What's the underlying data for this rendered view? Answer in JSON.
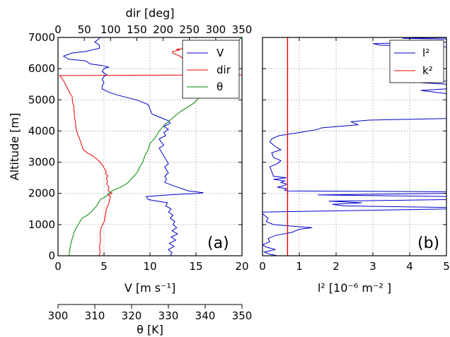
{
  "chart_data": [
    {
      "type": "line",
      "panel_label": "(a)",
      "ylabel": "Altitude [m]",
      "ylim": [
        0,
        7000
      ],
      "yticks": [
        0,
        1000,
        2000,
        3000,
        4000,
        5000,
        6000,
        7000
      ],
      "grid": true,
      "legend_position": "top-right",
      "axes": {
        "V": {
          "label": "V [m s⁻¹]",
          "lim": [
            0,
            20
          ],
          "ticks": [
            0,
            5,
            10,
            15,
            20
          ],
          "position": "bottom"
        },
        "dir": {
          "label": "dir [deg]",
          "lim": [
            0,
            350
          ],
          "ticks": [
            0,
            50,
            100,
            150,
            200,
            250,
            300,
            350
          ],
          "position": "top"
        },
        "theta": {
          "label": "θ [K]",
          "lim": [
            300,
            350
          ],
          "ticks": [
            300,
            310,
            320,
            330,
            340,
            350
          ],
          "position": "bottom-offset"
        }
      },
      "series": [
        {
          "name": "V",
          "axis": "V",
          "color": "#0000cc",
          "points": [
            [
              12.2,
              0
            ],
            [
              12.4,
              100
            ],
            [
              12.0,
              200
            ],
            [
              12.6,
              300
            ],
            [
              12.1,
              400
            ],
            [
              12.8,
              500
            ],
            [
              12.3,
              600
            ],
            [
              13.0,
              700
            ],
            [
              12.4,
              800
            ],
            [
              12.9,
              900
            ],
            [
              12.5,
              1000
            ],
            [
              12.7,
              1100
            ],
            [
              12.2,
              1200
            ],
            [
              12.5,
              1300
            ],
            [
              12.0,
              1400
            ],
            [
              12.3,
              1500
            ],
            [
              11.7,
              1600
            ],
            [
              11.9,
              1700
            ],
            [
              9.8,
              1800
            ],
            [
              9.6,
              1900
            ],
            [
              12.0,
              1950
            ],
            [
              15.2,
              2000
            ],
            [
              15.8,
              2020
            ],
            [
              14.2,
              2080
            ],
            [
              13.5,
              2150
            ],
            [
              12.5,
              2250
            ],
            [
              11.6,
              2350
            ],
            [
              11.8,
              2450
            ],
            [
              11.6,
              2550
            ],
            [
              12.0,
              2650
            ],
            [
              11.8,
              2750
            ],
            [
              11.6,
              2850
            ],
            [
              12.0,
              2950
            ],
            [
              11.8,
              3050
            ],
            [
              11.6,
              3150
            ],
            [
              11.4,
              3250
            ],
            [
              11.2,
              3350
            ],
            [
              11.0,
              3450
            ],
            [
              11.5,
              3550
            ],
            [
              11.2,
              3650
            ],
            [
              11.0,
              3750
            ],
            [
              11.7,
              3850
            ],
            [
              11.5,
              3950
            ],
            [
              12.0,
              4050
            ],
            [
              11.5,
              4150
            ],
            [
              12.2,
              4250
            ],
            [
              12.0,
              4330
            ],
            [
              11.0,
              4450
            ],
            [
              10.2,
              4550
            ],
            [
              10.0,
              4700
            ],
            [
              9.8,
              4850
            ],
            [
              8.5,
              5000
            ],
            [
              6.5,
              5150
            ],
            [
              5.5,
              5250
            ],
            [
              4.8,
              5350
            ],
            [
              4.8,
              5450
            ],
            [
              5.0,
              5550
            ],
            [
              4.8,
              5650
            ],
            [
              5.0,
              5750
            ],
            [
              5.3,
              5800
            ],
            [
              4.8,
              5900
            ],
            [
              5.0,
              6000
            ],
            [
              5.5,
              6050
            ],
            [
              4.8,
              6100
            ],
            [
              3.5,
              6150
            ],
            [
              3.0,
              6250
            ],
            [
              1.2,
              6300
            ],
            [
              0.6,
              6400
            ],
            [
              1.5,
              6500
            ],
            [
              3.0,
              6550
            ],
            [
              4.5,
              6650
            ],
            [
              4.5,
              6750
            ],
            [
              4.0,
              6850
            ],
            [
              4.4,
              6950
            ],
            [
              4.6,
              7000
            ]
          ]
        },
        {
          "name": "dir",
          "axis": "dir",
          "color": "#ee0000",
          "points": [
            [
              78,
              0
            ],
            [
              80,
              100
            ],
            [
              79,
              300
            ],
            [
              81,
              500
            ],
            [
              80,
              700
            ],
            [
              82,
              900
            ],
            [
              88,
              1100
            ],
            [
              90,
              1300
            ],
            [
              92,
              1500
            ],
            [
              97,
              1700
            ],
            [
              98,
              1800
            ],
            [
              100,
              1900
            ],
            [
              95,
              1950
            ],
            [
              103,
              2000
            ],
            [
              98,
              2050
            ],
            [
              95,
              2100
            ],
            [
              97,
              2200
            ],
            [
              93,
              2300
            ],
            [
              94,
              2400
            ],
            [
              92,
              2500
            ],
            [
              95,
              2550
            ],
            [
              90,
              2650
            ],
            [
              92,
              2700
            ],
            [
              88,
              2800
            ],
            [
              85,
              2900
            ],
            [
              80,
              3000
            ],
            [
              74,
              3100
            ],
            [
              66,
              3200
            ],
            [
              56,
              3300
            ],
            [
              48,
              3400
            ],
            [
              46,
              3500
            ],
            [
              42,
              3700
            ],
            [
              40,
              3800
            ],
            [
              37,
              3900
            ],
            [
              34,
              4100
            ],
            [
              33,
              4300
            ],
            [
              31,
              4500
            ],
            [
              31,
              4600
            ],
            [
              30,
              4700
            ],
            [
              30,
              4800
            ],
            [
              28,
              4900
            ],
            [
              27,
              5000
            ],
            [
              27,
              5100
            ],
            [
              23,
              5200
            ],
            [
              20,
              5300
            ],
            [
              17,
              5400
            ],
            [
              14,
              5500
            ],
            [
              11,
              5600
            ],
            [
              7,
              5700
            ],
            [
              3,
              5780
            ],
            [
              350,
              5800
            ],
            [
              262,
              5850
            ],
            [
              258,
              5900
            ],
            [
              262,
              6000
            ],
            [
              260,
              6100
            ],
            [
              250,
              6200
            ],
            [
              240,
              6300
            ],
            [
              232,
              6400
            ],
            [
              218,
              6500
            ],
            [
              218,
              6550
            ],
            [
              232,
              6600
            ],
            [
              225,
              6620
            ],
            [
              245,
              6650
            ],
            [
              246,
              6700
            ],
            [
              260,
              6750
            ],
            [
              265,
              6800
            ],
            [
              270,
              6850
            ]
          ]
        },
        {
          "name": "θ",
          "axis": "theta",
          "color": "#008800",
          "points": [
            [
              303,
              0
            ],
            [
              303.2,
              200
            ],
            [
              303.5,
              400
            ],
            [
              304,
              600
            ],
            [
              304.5,
              800
            ],
            [
              305.5,
              1000
            ],
            [
              306.5,
              1200
            ],
            [
              308,
              1300
            ],
            [
              309,
              1400
            ],
            [
              310.5,
              1600
            ],
            [
              311,
              1700
            ],
            [
              311.5,
              1800
            ],
            [
              313,
              1900
            ],
            [
              313.8,
              2000
            ],
            [
              315,
              2100
            ],
            [
              317,
              2200
            ],
            [
              318.5,
              2300
            ],
            [
              319.5,
              2400
            ],
            [
              320.2,
              2500
            ],
            [
              321,
              2600
            ],
            [
              321.7,
              2700
            ],
            [
              322,
              2800
            ],
            [
              323,
              3000
            ],
            [
              323.6,
              3200
            ],
            [
              324.5,
              3400
            ],
            [
              325,
              3600
            ],
            [
              326.5,
              3800
            ],
            [
              327.5,
              4000
            ],
            [
              329,
              4200
            ],
            [
              331,
              4400
            ],
            [
              333,
              4600
            ],
            [
              335,
              4750
            ],
            [
              337,
              4900
            ],
            [
              338.5,
              5100
            ],
            [
              339.5,
              5300
            ],
            [
              340.5,
              5500
            ],
            [
              341.5,
              5700
            ],
            [
              343,
              5900
            ],
            [
              344,
              6100
            ],
            [
              345,
              6300
            ],
            [
              346.5,
              6500
            ],
            [
              347.5,
              6700
            ],
            [
              349,
              6900
            ],
            [
              350,
              7000
            ]
          ]
        }
      ]
    },
    {
      "type": "line",
      "panel_label": "(b)",
      "xlabel": "l²  [10⁻⁶  m⁻² ]",
      "xlim": [
        0,
        5
      ],
      "xticks": [
        0,
        1,
        2,
        3,
        4,
        5
      ],
      "ylim": [
        0,
        7000
      ],
      "grid": true,
      "legend_position": "top-right",
      "series": [
        {
          "name": "l²",
          "color": "#0000cc",
          "points": [
            [
              0.4,
              0
            ],
            [
              0.2,
              50
            ],
            [
              0.05,
              120
            ],
            [
              0.35,
              200
            ],
            [
              0.1,
              280
            ],
            [
              0,
              350
            ],
            [
              0.2,
              450
            ],
            [
              0.15,
              550
            ],
            [
              0.35,
              650
            ],
            [
              0.8,
              750
            ],
            [
              1.0,
              850
            ],
            [
              1.35,
              900
            ],
            [
              0.8,
              950
            ],
            [
              0.3,
              1000
            ],
            [
              0.1,
              1100
            ],
            [
              0.15,
              1200
            ],
            [
              0.05,
              1300
            ],
            [
              0,
              1350
            ],
            [
              0,
              1400
            ],
            [
              2.5,
              1450
            ],
            [
              5,
              1500
            ],
            [
              5,
              1550
            ],
            [
              2.2,
              1600
            ],
            [
              1.9,
              1650
            ],
            [
              2.7,
              1700
            ],
            [
              1.8,
              1750
            ],
            [
              5,
              1800
            ],
            [
              5,
              1900
            ],
            [
              1.5,
              1950
            ],
            [
              5,
              2000
            ],
            [
              5,
              2050
            ],
            [
              0.7,
              2080
            ],
            [
              0.6,
              2100
            ],
            [
              0.65,
              2150
            ],
            [
              0.4,
              2200
            ],
            [
              0.6,
              2250
            ],
            [
              0.65,
              2300
            ],
            [
              0.5,
              2350
            ],
            [
              0.6,
              2400
            ],
            [
              0.3,
              2450
            ],
            [
              0.65,
              2500
            ],
            [
              0.3,
              2550
            ],
            [
              0.25,
              2700
            ],
            [
              0.2,
              2850
            ],
            [
              0.4,
              2950
            ],
            [
              0.5,
              3050
            ],
            [
              0.3,
              3150
            ],
            [
              0.25,
              3300
            ],
            [
              0.5,
              3400
            ],
            [
              0.35,
              3500
            ],
            [
              0.2,
              3650
            ],
            [
              0.25,
              3750
            ],
            [
              0.45,
              3850
            ],
            [
              1.0,
              3950
            ],
            [
              1.5,
              4050
            ],
            [
              1.6,
              4100
            ],
            [
              2.6,
              4200
            ],
            [
              2.4,
              4300
            ],
            [
              2.9,
              4350
            ],
            [
              5,
              4400
            ],
            [
              5,
              5200
            ],
            [
              4.3,
              5300
            ],
            [
              5,
              5350
            ],
            [
              5,
              5500
            ],
            [
              4.3,
              5550
            ],
            [
              5,
              5600
            ],
            [
              5,
              6700
            ],
            [
              3.2,
              6750
            ],
            [
              3.0,
              6800
            ],
            [
              5,
              6850
            ],
            [
              5,
              6950
            ],
            [
              3.8,
              6970
            ],
            [
              5,
              6990
            ]
          ]
        },
        {
          "name": "k²",
          "color": "#ee0000",
          "points": [
            [
              0.68,
              0
            ],
            [
              0.68,
              7000
            ]
          ]
        }
      ]
    }
  ]
}
